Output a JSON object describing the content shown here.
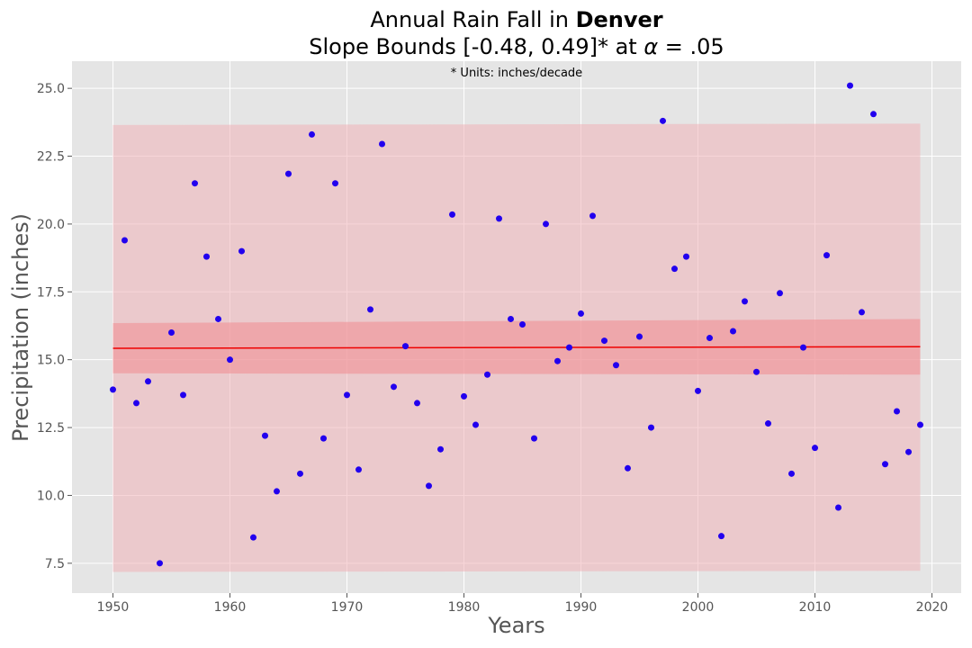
{
  "chart_data": {
    "type": "scatter",
    "title_prefix": "Annual Rain Fall in ",
    "title_city": "Denver",
    "subtitle_prefix": "Slope Bounds [-0.48, 0.49]* at ",
    "subtitle_alpha": "α",
    "subtitle_suffix": " = .05",
    "annotation": "* Units: inches/decade",
    "xlabel": "Years",
    "ylabel": "Precipitation (inches)",
    "xlim": [
      1946.5,
      2022.5
    ],
    "ylim": [
      6.4,
      26.0
    ],
    "xticks": [
      1950,
      1960,
      1970,
      1980,
      1990,
      2000,
      2010,
      2020
    ],
    "yticks": [
      7.5,
      10.0,
      12.5,
      15.0,
      17.5,
      20.0,
      22.5,
      25.0
    ],
    "ytick_labels": [
      "7.5",
      "10.0",
      "12.5",
      "15.0",
      "17.5",
      "20.0",
      "22.5",
      "25.0"
    ],
    "grid": true,
    "colors": {
      "background": "#e5e5e5",
      "grid": "#ffffff",
      "points": "#2200ee",
      "trend": "#ee0000",
      "outer_band": "#f0b2b8",
      "inner_band": "#f08a90"
    },
    "trend_line": {
      "x": [
        1950,
        2019
      ],
      "y": [
        15.42,
        15.48
      ]
    },
    "outer_band": {
      "x": [
        1950,
        2019
      ],
      "lower": [
        7.18,
        7.22
      ],
      "upper": [
        23.65,
        23.7
      ]
    },
    "inner_band": {
      "x": [
        1950,
        2019
      ],
      "lower": [
        14.5,
        14.45
      ],
      "upper": [
        16.35,
        16.5
      ]
    },
    "series": [
      {
        "x": [
          1950,
          1951,
          1952,
          1953,
          1954,
          1955,
          1956,
          1957,
          1958,
          1959,
          1960,
          1961,
          1962,
          1963,
          1964,
          1965,
          1966,
          1967,
          1968,
          1969,
          1970,
          1971,
          1972,
          1973,
          1974,
          1975,
          1976,
          1977,
          1978,
          1979,
          1980,
          1981,
          1982,
          1983,
          1984,
          1985,
          1986,
          1987,
          1988,
          1989,
          1990,
          1991,
          1992,
          1993,
          1994,
          1995,
          1996,
          1997,
          1998,
          1999,
          2000,
          2001,
          2002,
          2003,
          2004,
          2005,
          2006,
          2007,
          2008,
          2009,
          2010,
          2011,
          2012,
          2013,
          2014,
          2015,
          2016,
          2017,
          2018,
          2019
        ],
        "y": [
          13.9,
          19.4,
          13.4,
          14.2,
          7.5,
          16.0,
          13.7,
          21.5,
          18.8,
          16.5,
          15.0,
          19.0,
          8.45,
          12.2,
          10.15,
          21.85,
          10.8,
          23.3,
          12.1,
          21.5,
          13.7,
          10.95,
          16.85,
          22.95,
          14.0,
          15.5,
          13.4,
          10.35,
          11.7,
          20.35,
          13.65,
          12.6,
          14.45,
          20.2,
          16.5,
          16.3,
          12.1,
          20.0,
          14.95,
          15.45,
          16.7,
          20.3,
          15.7,
          14.8,
          11.0,
          15.85,
          12.5,
          23.8,
          18.35,
          18.8,
          13.85,
          15.8,
          8.5,
          16.05,
          17.15,
          14.55,
          12.65,
          17.45,
          10.8,
          15.45,
          11.75,
          18.85,
          9.55,
          25.1,
          16.75,
          24.05,
          11.15,
          13.1,
          11.6,
          12.6
        ]
      }
    ]
  }
}
